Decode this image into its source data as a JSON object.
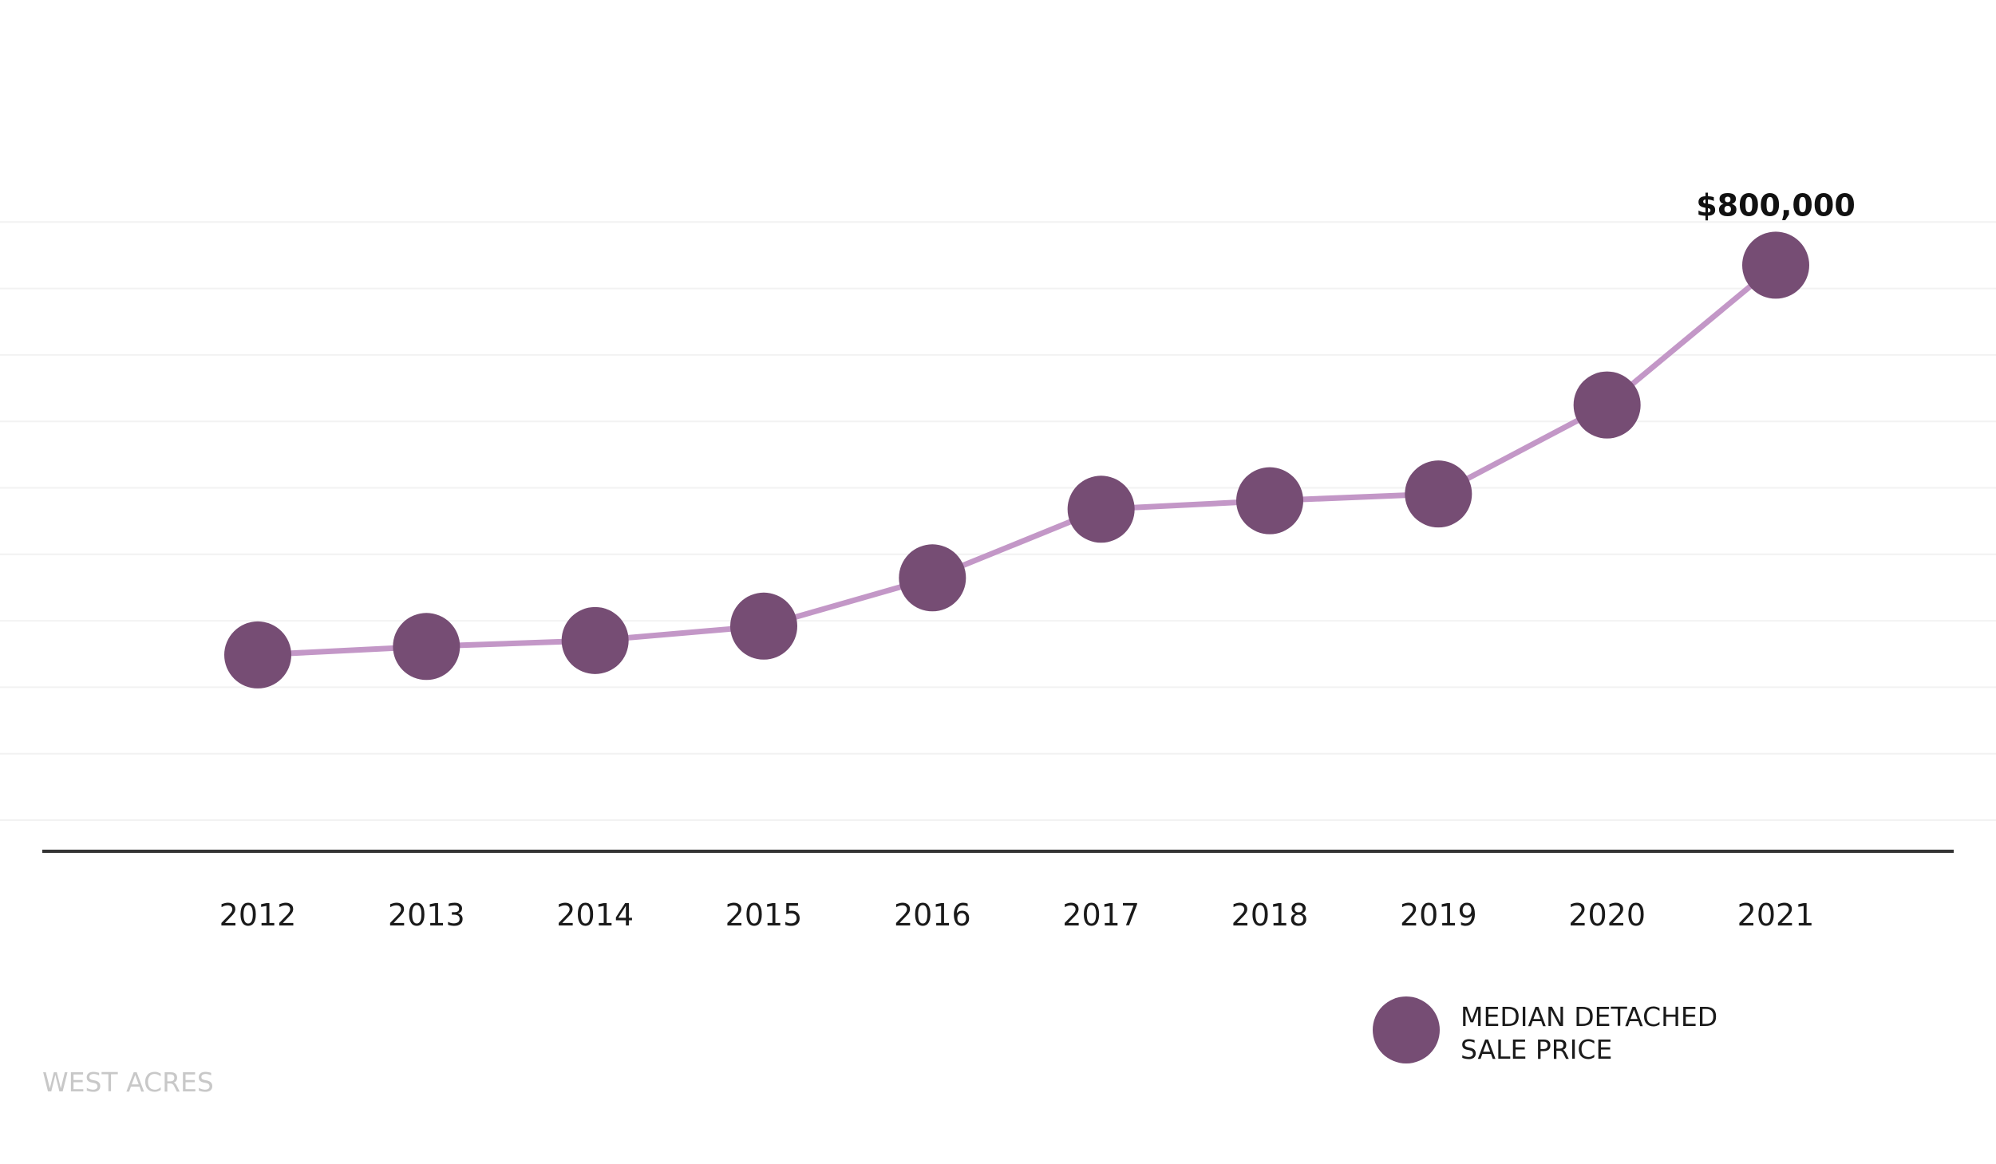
{
  "chart_data": {
    "type": "line",
    "title": "",
    "xlabel": "",
    "ylabel": "",
    "categories": [
      "2012",
      "2013",
      "2014",
      "2015",
      "2016",
      "2017",
      "2018",
      "2019",
      "2020",
      "2021"
    ],
    "series": [
      {
        "name": "MEDIAN DETACHED SALE PRICE",
        "values": [
          340000,
          350000,
          357000,
          374000,
          431000,
          512000,
          522000,
          530000,
          635000,
          800000
        ]
      }
    ],
    "annotations": [
      {
        "category": "2021",
        "text": "$800,000"
      }
    ],
    "ylim": [
      0,
      1000000
    ],
    "grid": true,
    "legend_position": "bottom-right",
    "legend_lines": [
      "MEDIAN DETACHED",
      "SALE PRICE"
    ],
    "colors": {
      "marker": "#764d74",
      "line": "#c397c7",
      "axis": "#333333",
      "grid": "#f2f2f2"
    }
  },
  "watermark": "WEST ACRES"
}
